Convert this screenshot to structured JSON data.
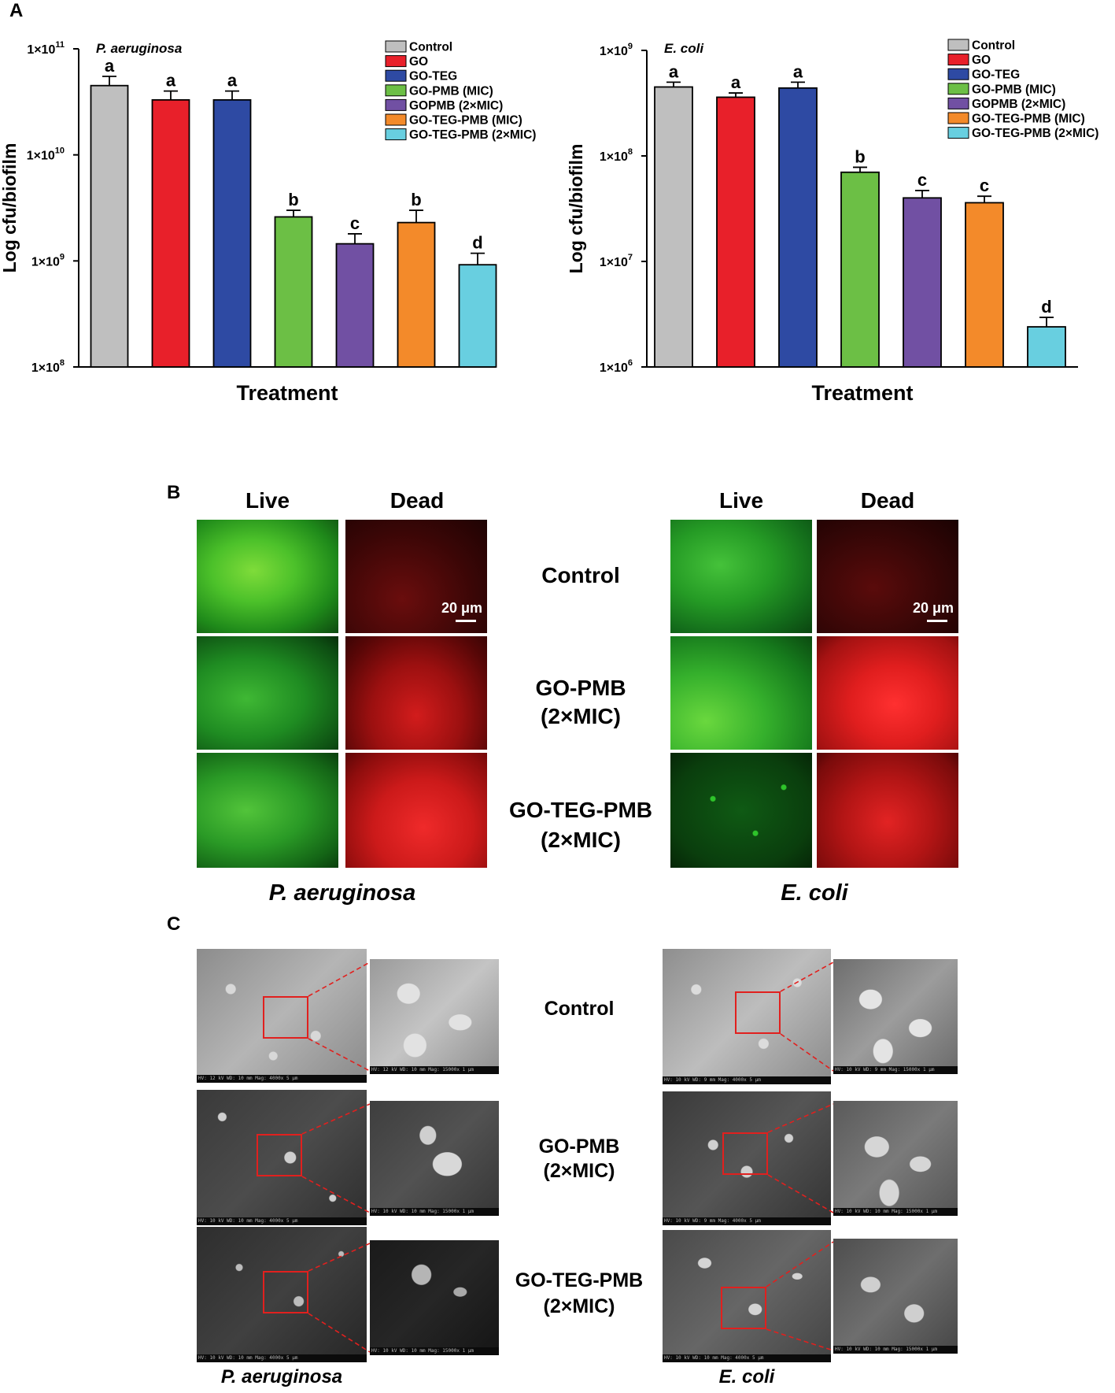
{
  "panels": {
    "A": "A",
    "B": "B",
    "C": "C"
  },
  "chart_data": [
    {
      "type": "bar",
      "title": "P. aeruginosa",
      "xlabel": "Treatment",
      "ylabel": "Log cfu/biofilm",
      "y_scale": "log",
      "ylim": [
        100000000.0,
        100000000000.0
      ],
      "yticks": [
        {
          "base": "1×10",
          "exp": "8"
        },
        {
          "base": "1×10",
          "exp": "9"
        },
        {
          "base": "1×10",
          "exp": "10"
        },
        {
          "base": "1×10",
          "exp": "11"
        }
      ],
      "legend_position": "top-right",
      "categories": [
        "Control",
        "GO",
        "GO-TEG",
        "GO-PMB (MIC)",
        "GOPMB (2×MIC)",
        "GO-TEG-PMB (MIC)",
        "GO-TEG-PMB (2×MIC)"
      ],
      "values": [
        45000000000.0,
        33000000000.0,
        33000000000.0,
        2600000000.0,
        1450000000.0,
        2300000000.0,
        920000000.0
      ],
      "error_upper": [
        55000000000.0,
        40000000000.0,
        40000000000.0,
        3000000000.0,
        1800000000.0,
        3000000000.0,
        1180000000.0
      ],
      "significance": [
        "a",
        "a",
        "a",
        "b",
        "c",
        "b",
        "d"
      ],
      "colors": [
        "#bfbfbf",
        "#e8202a",
        "#2e4aa3",
        "#6cbf45",
        "#7150a3",
        "#f38a2a",
        "#68cfe0"
      ]
    },
    {
      "type": "bar",
      "title": "E. coli",
      "xlabel": "Treatment",
      "ylabel": "Log cfu/biofilm",
      "y_scale": "log",
      "ylim": [
        1000000.0,
        1000000000.0
      ],
      "yticks": [
        {
          "base": "1×10",
          "exp": "6"
        },
        {
          "base": "1×10",
          "exp": "7"
        },
        {
          "base": "1×10",
          "exp": "8"
        },
        {
          "base": "1×10",
          "exp": "9"
        }
      ],
      "legend_position": "top-right",
      "categories": [
        "Control",
        "GO",
        "GO-TEG",
        "GO-PMB (MIC)",
        "GOPMB (2×MIC)",
        "GO-TEG-PMB (MIC)",
        "GO-TEG-PMB (2×MIC)"
      ],
      "values": [
        450000000.0,
        360000000.0,
        440000000.0,
        70000000.0,
        40000000.0,
        36000000.0,
        2400000.0
      ],
      "error_upper": [
        500000000.0,
        395000000.0,
        500000000.0,
        78000000.0,
        47000000.0,
        41500000.0,
        2950000.0
      ],
      "significance": [
        "a",
        "a",
        "a",
        "b",
        "c",
        "c",
        "d"
      ],
      "colors": [
        "#bfbfbf",
        "#e8202a",
        "#2e4aa3",
        "#6cbf45",
        "#7150a3",
        "#f38a2a",
        "#68cfe0"
      ]
    }
  ],
  "panelB": {
    "col_live": "Live",
    "col_dead": "Dead",
    "rows": [
      "Control",
      "GO-PMB\n(2×MIC)",
      "GO-TEG-PMB\n(2×MIC)"
    ],
    "row_control": "Control",
    "row_gopmb_1": "GO-PMB",
    "row_gopmb_2": "(2×MIC)",
    "row_goteg_1": "GO-TEG-PMB",
    "row_goteg_2": "(2×MIC)",
    "scale_bar": "20 μm",
    "species_left": "P. aeruginosa",
    "species_right": "E. coli",
    "colors": {
      "live": "#2aa52a",
      "dead": "#b01010"
    }
  },
  "panelC": {
    "row_control": "Control",
    "row_gopmb_1": "GO-PMB",
    "row_gopmb_2": "(2×MIC)",
    "row_goteg_1": "GO-TEG-PMB",
    "row_goteg_2": "(2×MIC)",
    "species_left": "P. aeruginosa",
    "species_right": "E. coli",
    "sem_left_p1": "HV: 12 kV  WD: 10 mm  Mag: 4000x        5 μm",
    "sem_zoom_p1": "HV: 12 kV  WD: 10 mm  Mag: 15000x     1 μm",
    "sem_left_p2": "HV: 10 kV  WD: 10 mm  Mag: 4000x        5 μm",
    "sem_zoom_p2": "HV: 10 kV  WD: 10 mm  Mag: 15000x     1 μm",
    "sem_left_p3": "HV: 10 kV  WD: 10 mm  Mag: 4000x        5 μm",
    "sem_zoom_p3": "HV: 10 kV  WD: 10 mm  Mag: 15000x     1 μm",
    "sem_left_e1": "HV: 10 kV  WD: 9 mm  Mag: 4000x         5 μm",
    "sem_zoom_e1": "HV: 10 kV  WD: 9 mm  Mag: 15000x      1 μm",
    "sem_left_e2": "HV: 10 kV  WD: 9 mm  Mag: 4000x         5 μm",
    "sem_zoom_e2": "HV: 10 kV  WD: 10 mm  Mag: 15000x     1 μm",
    "sem_left_e3": "HV: 10 kV  WD: 10 mm  Mag: 4000x        5 μm",
    "sem_zoom_e3": "HV: 10 kV  WD: 10 mm  Mag: 15000x     1 μm"
  }
}
